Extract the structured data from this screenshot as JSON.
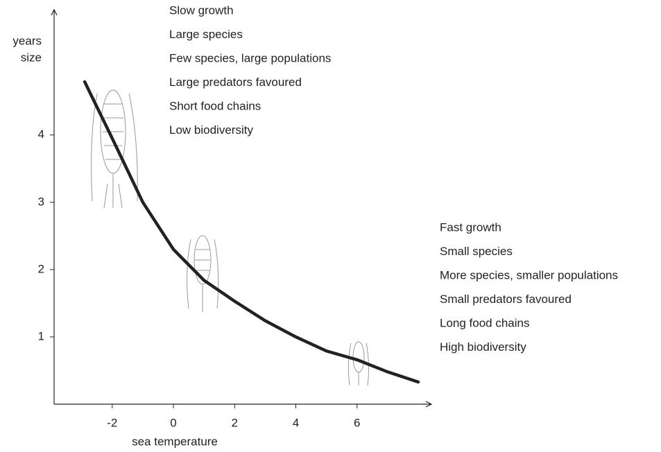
{
  "chart_data": {
    "type": "line",
    "xlabel": "sea temperature",
    "ylabel_lines": [
      "years",
      "size"
    ],
    "x": [
      -2.9,
      -2,
      -1,
      0,
      1,
      2,
      3,
      4,
      5,
      6,
      7,
      8
    ],
    "series": [
      {
        "color": "#222222",
        "values": [
          4.79,
          3.95,
          3.0,
          2.3,
          1.84,
          1.53,
          1.24,
          1.0,
          0.79,
          0.66,
          0.48,
          0.33
        ]
      }
    ],
    "xlim": [
      -3.9,
      8.5
    ],
    "ylim": [
      0,
      5.8
    ],
    "xticks": [
      -2,
      0,
      2,
      4,
      6
    ],
    "yticks": [
      1,
      2,
      3,
      4
    ],
    "annotations": [
      {
        "lines": [
          "Slow growth",
          "Large species",
          "Few species, large populations",
          "Large predators favoured",
          "Short food chains",
          "Low biodiversity"
        ]
      },
      {
        "lines": [
          "Fast growth",
          "Small species",
          "More species, smaller populations",
          "Small predators favoured",
          "Long food chains",
          "High biodiversity"
        ]
      }
    ]
  }
}
